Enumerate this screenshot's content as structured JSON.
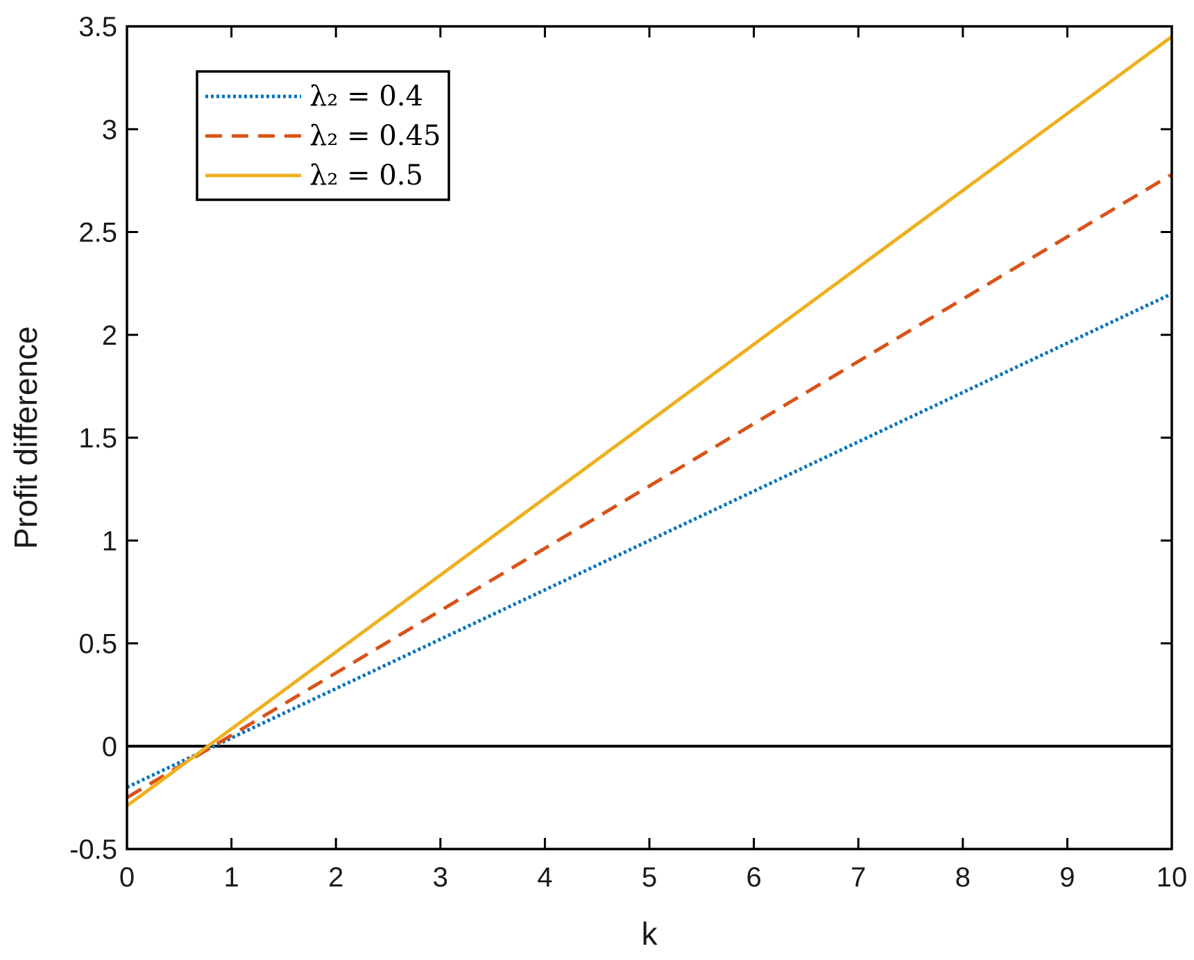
{
  "chart_data": {
    "type": "line",
    "xlabel": "k",
    "ylabel": "Profit difference",
    "xlim": [
      0,
      10
    ],
    "ylim": [
      -0.5,
      3.5
    ],
    "xticks": [
      "0",
      "1",
      "2",
      "3",
      "4",
      "5",
      "6",
      "7",
      "8",
      "9",
      "10"
    ],
    "yticks": [
      "-0.5",
      "0",
      "0.5",
      "1",
      "1.5",
      "2",
      "2.5",
      "3",
      "3.5"
    ],
    "grid": false,
    "legend_position": "top-left",
    "reference_line": {
      "y": 0,
      "color": "#000000"
    },
    "series": [
      {
        "name": "λ₂ = 0.4",
        "style": "dotted",
        "color": "#0072BD",
        "x": [
          0,
          10
        ],
        "y": [
          -0.2,
          2.2
        ]
      },
      {
        "name": "λ₂ = 0.45",
        "style": "dashed",
        "color": "#D95319",
        "x": [
          0,
          10
        ],
        "y": [
          -0.25,
          2.78
        ]
      },
      {
        "name": "λ₂ = 0.5",
        "style": "solid",
        "color": "#EDB120",
        "x": [
          0,
          10
        ],
        "y": [
          -0.29,
          3.45
        ]
      }
    ]
  }
}
